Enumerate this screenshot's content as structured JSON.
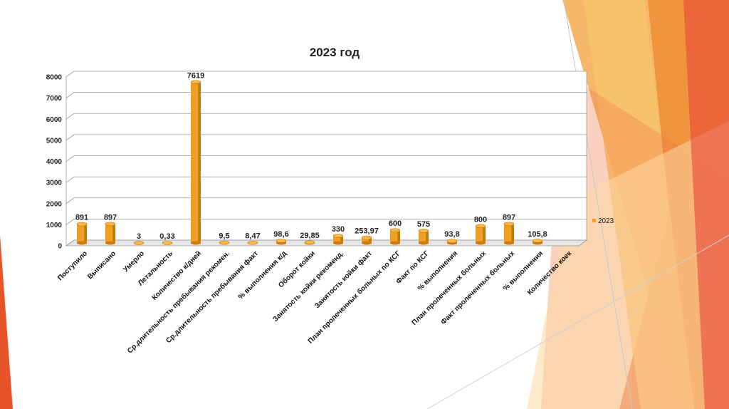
{
  "chart_data": {
    "type": "bar",
    "title": "2023 год",
    "ylim": [
      0,
      8000
    ],
    "yticks": [
      0,
      1000,
      2000,
      3000,
      4000,
      5000,
      6000,
      7000,
      8000
    ],
    "grid": true,
    "legend_position": "right",
    "colors": {
      "bar": "#f0a020",
      "bar_dark": "#c87a0a"
    },
    "categories": [
      "Поступило",
      "Выписано",
      "Умерло",
      "Летальность",
      "Количество к/дней",
      "Ср.длительность  пребывания рекомен.",
      "Ср.длительность  пребывания факт",
      "% выполнения к/д",
      "Оборот койки",
      "Занятость койки рекоменд.",
      "Занятость койки факт",
      "План пролеченных больных по КСГ",
      "Факт по КСГ",
      "% выполнения",
      "План пролеченных больных",
      "Факт пролеченных больных",
      "% выполнения",
      "Количество коек"
    ],
    "series": [
      {
        "name": "2023",
        "values": [
          891,
          897,
          3,
          0.33,
          7619,
          9.5,
          8.47,
          98.6,
          29.85,
          330,
          253.97,
          600,
          575,
          93.8,
          800,
          897,
          105.8,
          null
        ],
        "labels": [
          "891",
          "897",
          "3",
          "0,33",
          "7619",
          "9,5",
          "8,47",
          "98,6",
          "29,85",
          "330",
          "253,97",
          "600",
          "575",
          "93,8",
          "800",
          "897",
          "105,8",
          ""
        ]
      }
    ]
  }
}
